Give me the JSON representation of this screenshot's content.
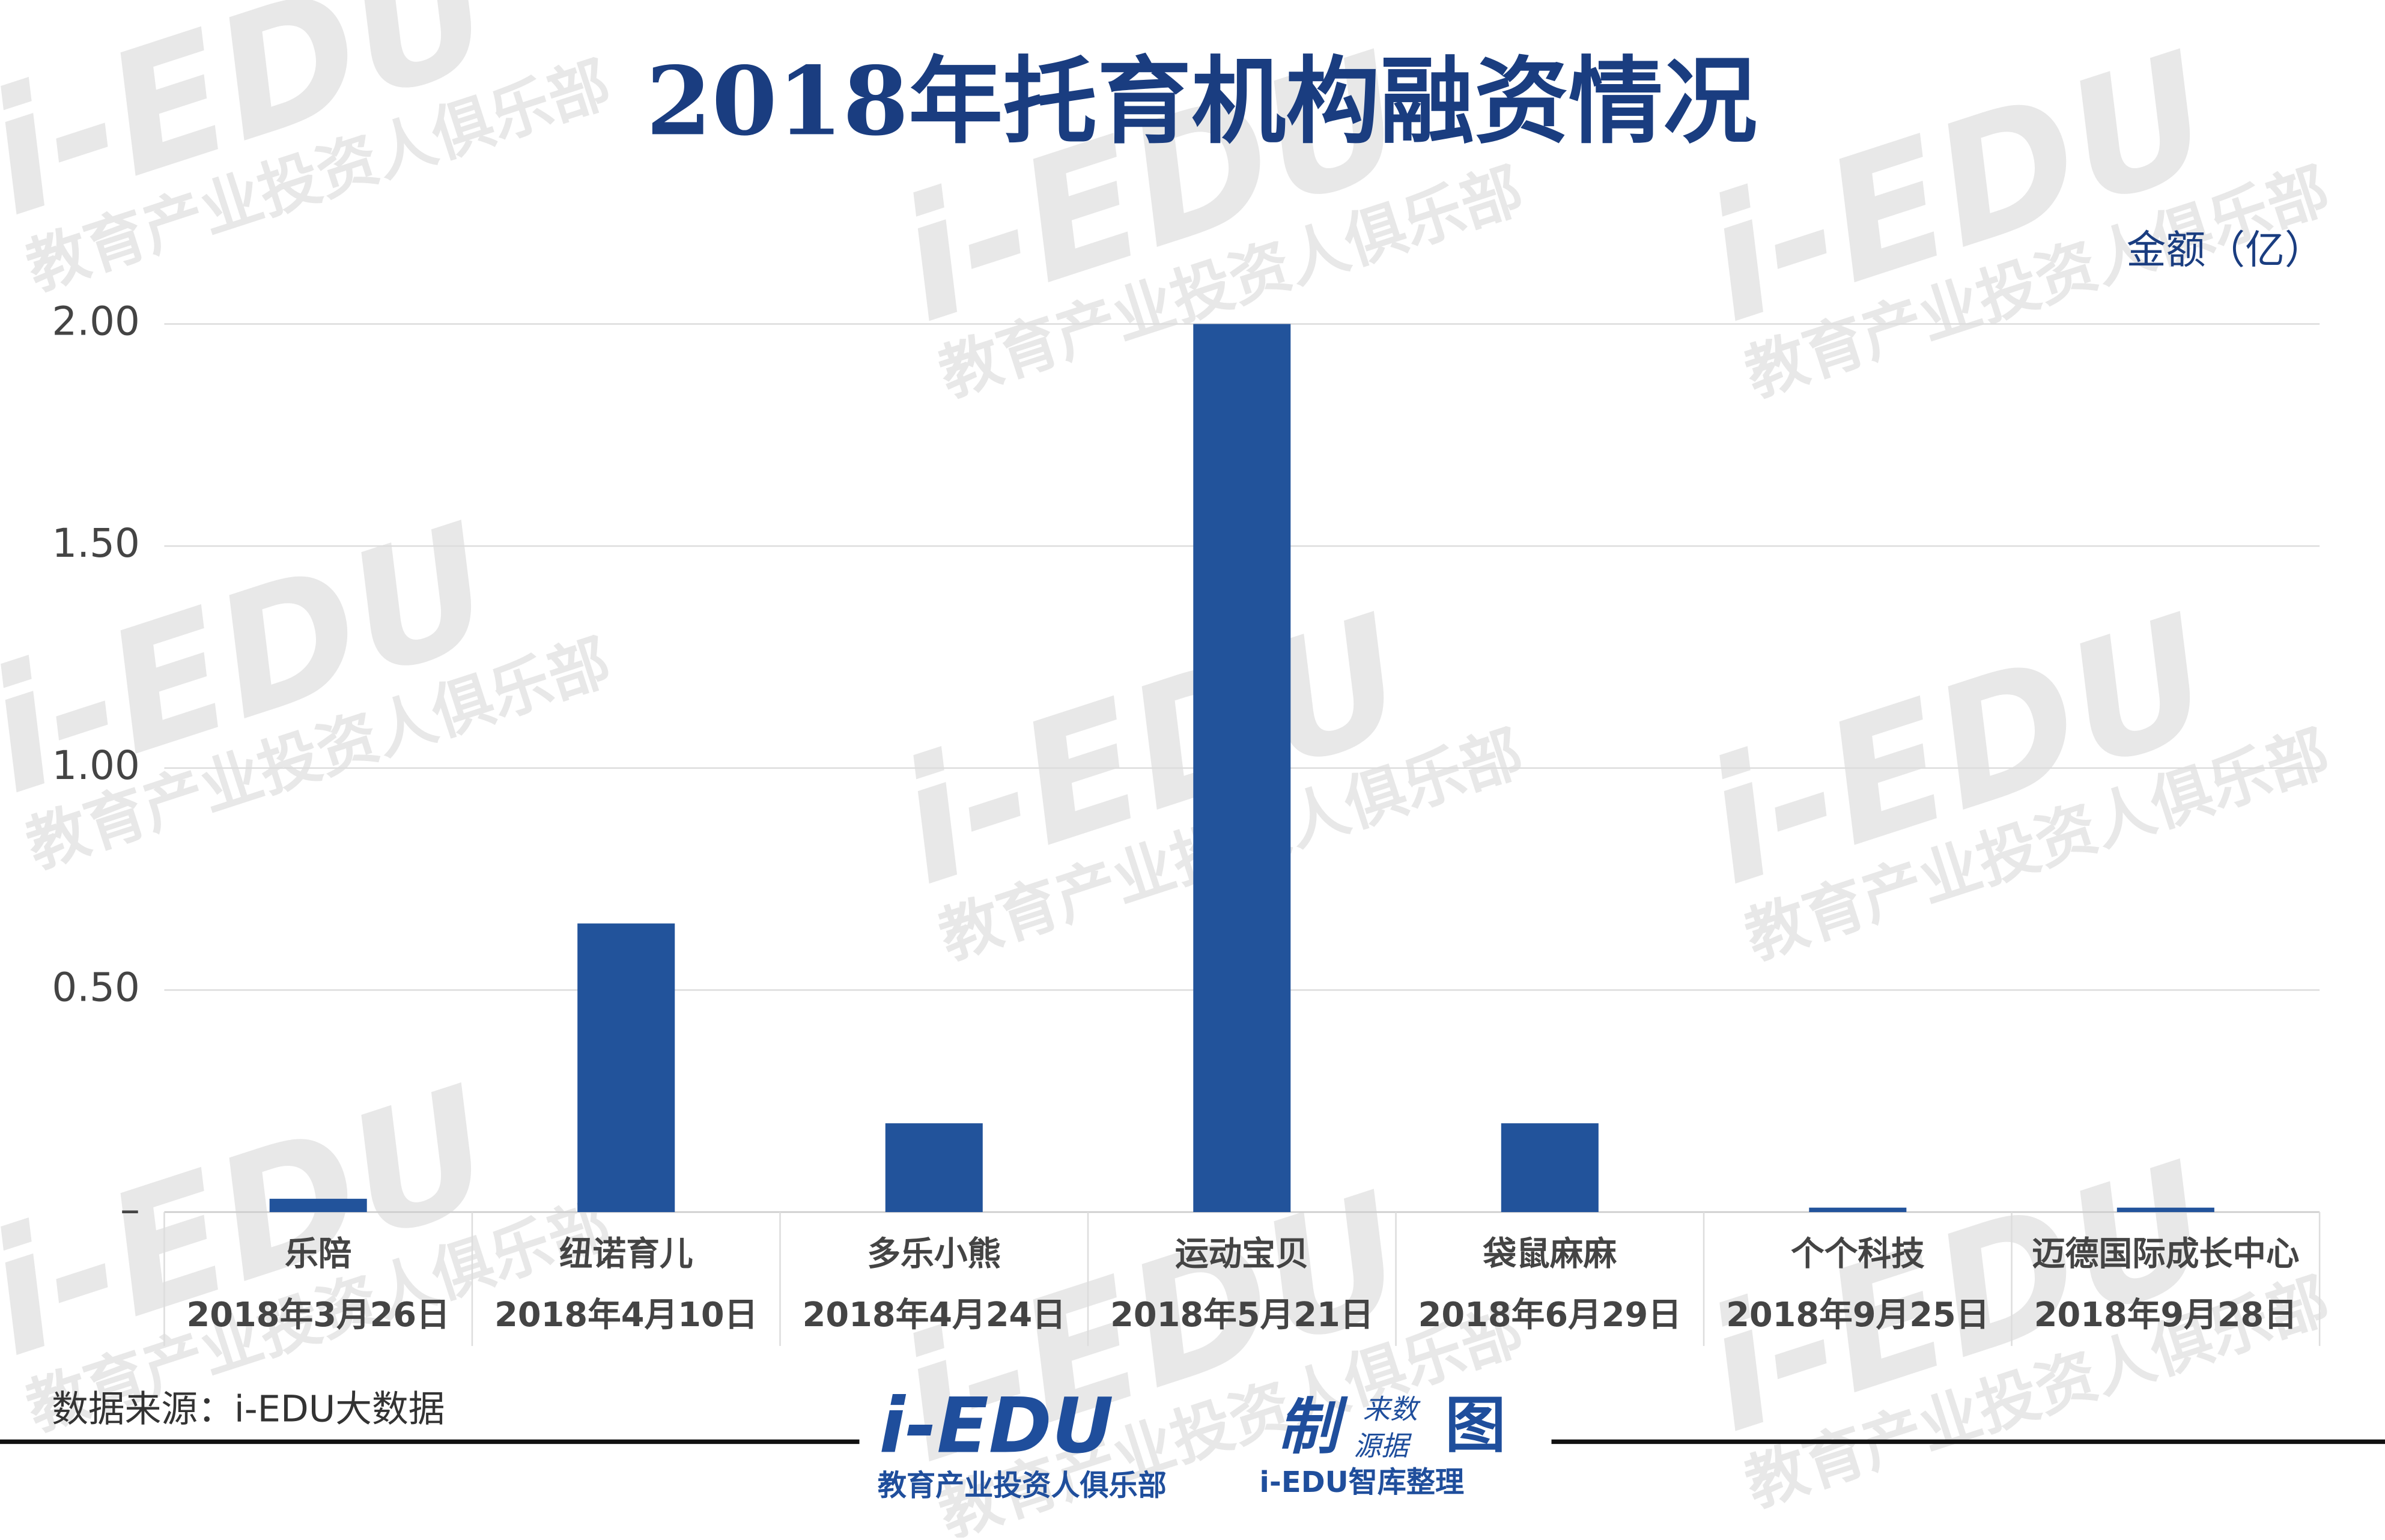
{
  "chart_data": {
    "type": "bar",
    "title": "2018年托育机构融资情况",
    "y_axis_label": "金额（亿）",
    "categories": [
      "乐陪",
      "纽诺育儿",
      "多乐小熊",
      "运动宝贝",
      "袋鼠麻麻",
      "个个科技",
      "迈德国际成长中心"
    ],
    "dates": [
      "2018年3月26日",
      "2018年4月10日",
      "2018年4月24日",
      "2018年5月21日",
      "2018年6月29日",
      "2018年9月25日",
      "2018年9月28日"
    ],
    "values": [
      0.03,
      0.65,
      0.2,
      2.0,
      0.2,
      0.01,
      0.01
    ],
    "color": "#22539b",
    "ylim": [
      0,
      2.0
    ],
    "yticks": [
      {
        "value": 0,
        "label": "–"
      },
      {
        "value": 0.5,
        "label": "0.50"
      },
      {
        "value": 1.0,
        "label": "1.00"
      },
      {
        "value": 1.5,
        "label": "1.50"
      },
      {
        "value": 2.0,
        "label": "2.00"
      }
    ],
    "grid": true,
    "source": "数据来源：i-EDU大数据"
  },
  "logo": {
    "brand": "i-EDU",
    "made": "制",
    "src1": "来数",
    "src2": "源据",
    "chart": "图",
    "club": "教育产业投资人俱乐部",
    "team": "i-EDU智库整理"
  },
  "watermark": {
    "brand": "i-EDU",
    "club": "教育产业投资人俱乐部"
  }
}
